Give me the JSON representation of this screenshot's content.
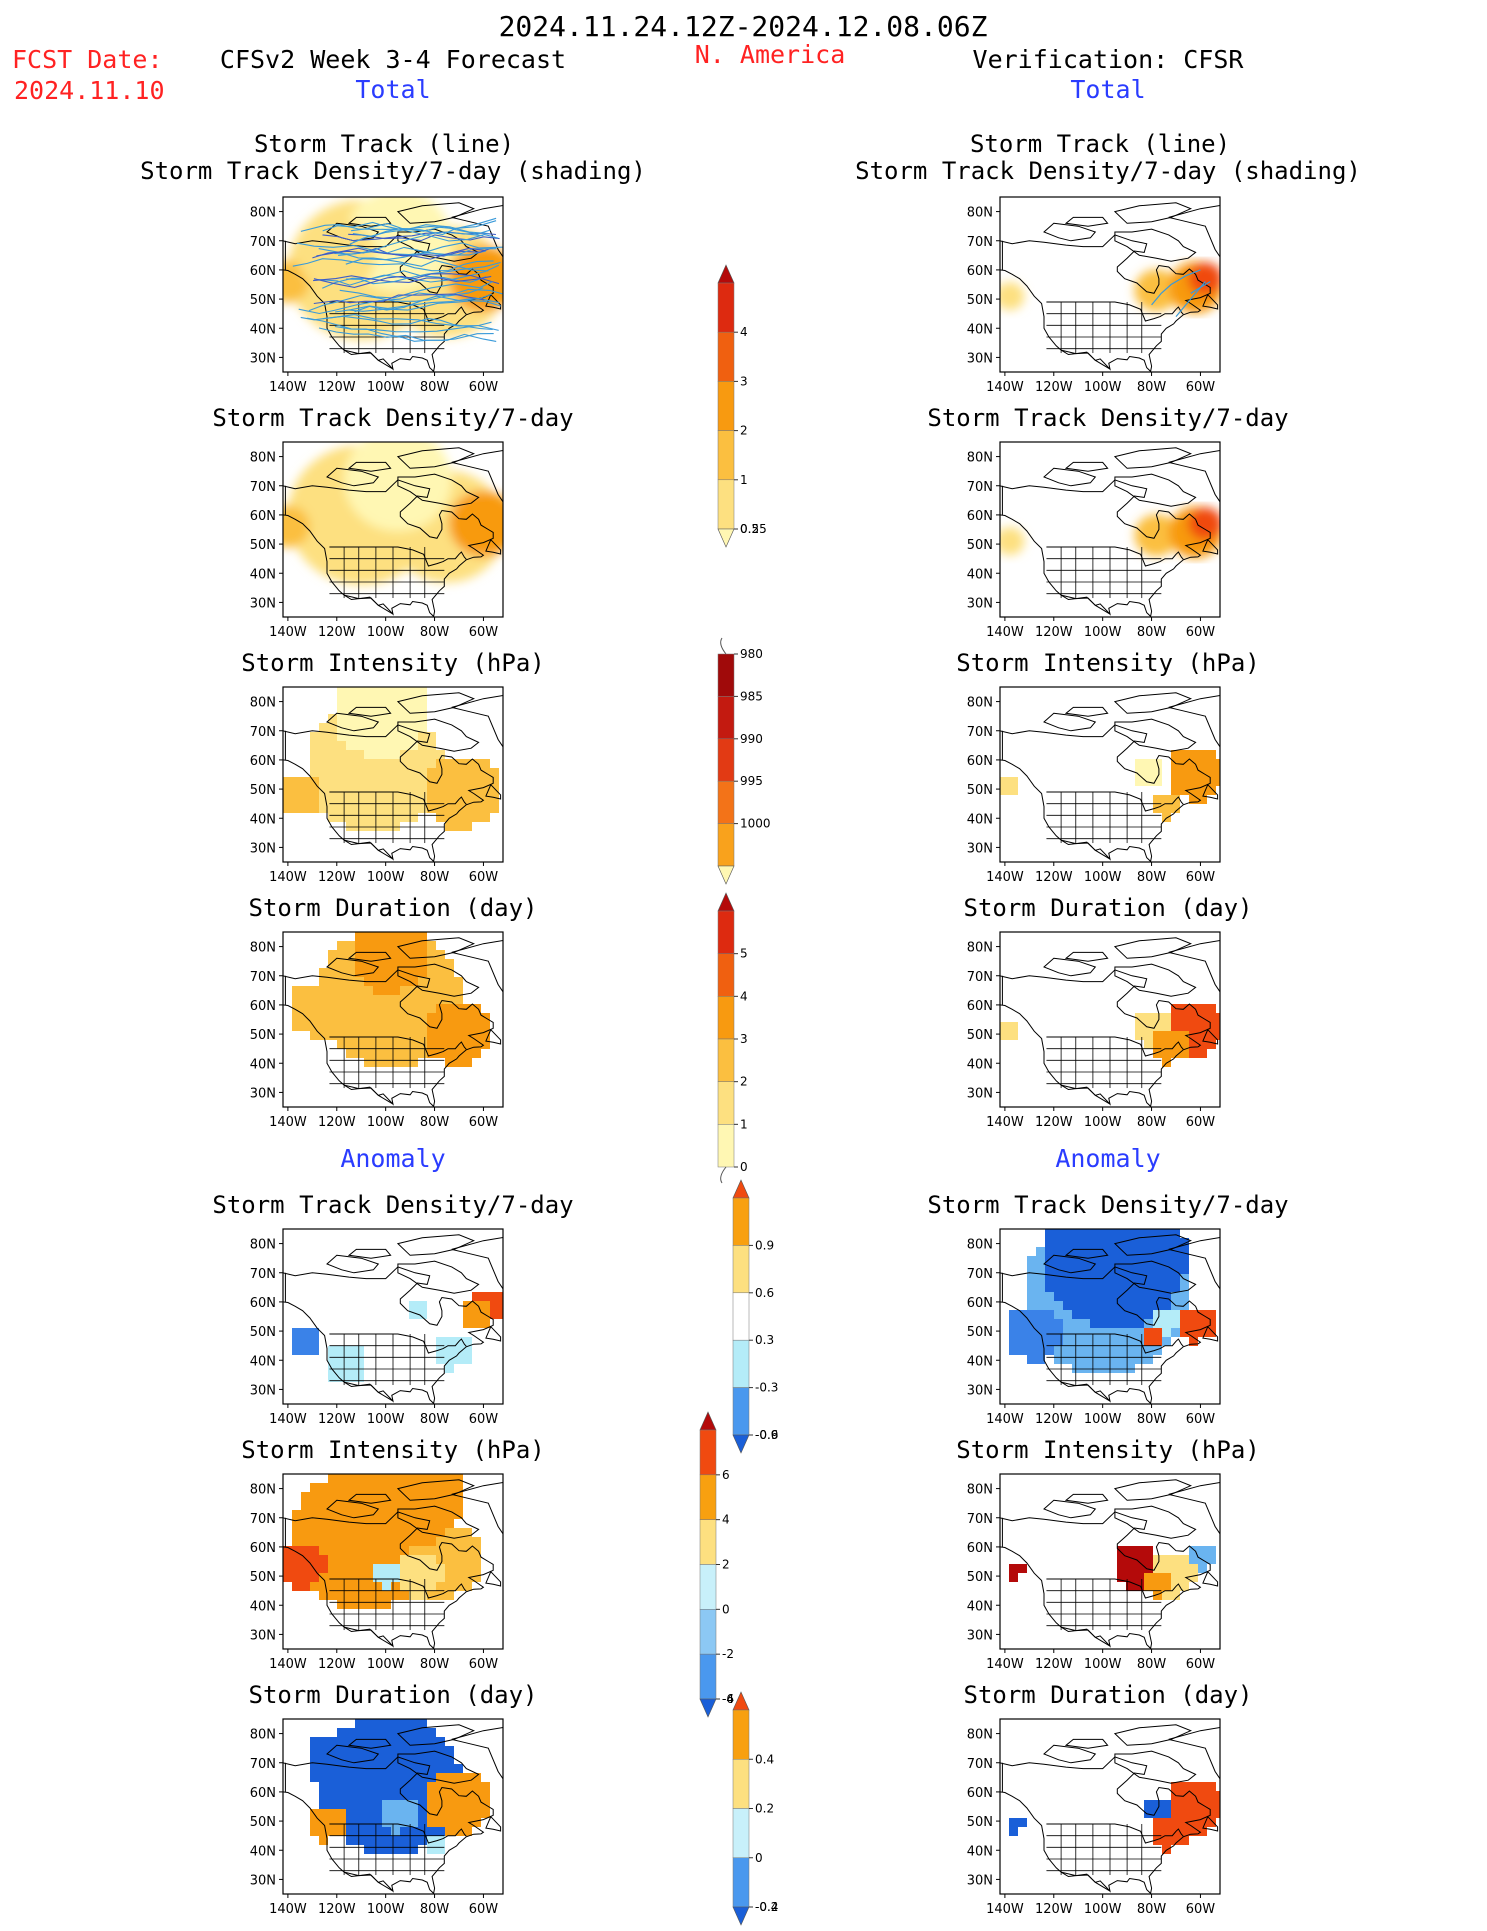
{
  "header": {
    "date_range": "2024.11.24.12Z-2024.12.08.06Z",
    "fcst_date_label": "FCST Date:",
    "fcst_date_value": "2024.11.10",
    "left_title": "CFSv2 Week 3-4 Forecast",
    "region": "N. America",
    "right_title": "Verification: CFSR",
    "total_left": "Total",
    "total_right": "Total",
    "anomaly_left": "Anomaly",
    "anomaly_right": "Anomaly"
  },
  "axes": {
    "lat_labels": [
      "80N",
      "70N",
      "60N",
      "50N",
      "40N",
      "30N"
    ],
    "lon_labels": [
      "140W",
      "120W",
      "100W",
      "80W",
      "60W"
    ]
  },
  "panels": {
    "l1_title_a": "Storm Track (line)",
    "l1_title_b": "Storm Track Density/7-day (shading)",
    "r1_title_a": "Storm Track (line)",
    "r1_title_b": "Storm Track Density/7-day (shading)",
    "l2_title": "Storm Track Density/7-day",
    "r2_title": "Storm Track Density/7-day",
    "l3_title": "Storm Intensity (hPa)",
    "r3_title": "Storm Intensity (hPa)",
    "l4_title": "Storm Duration (day)",
    "r4_title": "Storm Duration (day)",
    "l5_title": "Storm Track Density/7-day",
    "r5_title": "Storm Track Density/7-day",
    "l6_title": "Storm Intensity (hPa)",
    "r6_title": "Storm Intensity (hPa)",
    "l7_title": "Storm Duration (day)",
    "r7_title": "Storm Duration (day)"
  },
  "colorbars": {
    "density_total": {
      "labels": [
        "0.25",
        "0.5",
        "1",
        "2",
        "3",
        "4"
      ],
      "colors": [
        "#fff7b3",
        "#fde080",
        "#fbbf40",
        "#f89a10",
        "#f06010",
        "#dd2a10",
        "#b40a0a"
      ]
    },
    "intensity_total": {
      "labels": [
        "1000",
        "995",
        "990",
        "985",
        "980"
      ],
      "colors": [
        "#fff7b3",
        "#f9a21c",
        "#f37318",
        "#e23a14",
        "#c31a10",
        "#a00a0a"
      ]
    },
    "duration_total": {
      "labels": [
        "0",
        "1",
        "2",
        "3",
        "4",
        "5"
      ],
      "colors": [
        "#fff7b3",
        "#fde080",
        "#fbbf40",
        "#f89a10",
        "#f06010",
        "#dd2a10",
        "#b40a0a"
      ]
    },
    "density_anom": {
      "labels": [
        "-0.9",
        "-0.6",
        "-0.3",
        "0.3",
        "0.6",
        "0.9"
      ],
      "colors": [
        "#1a5fd8",
        "#4a98ee",
        "#b4ecf8",
        "#ffffff",
        "#fde080",
        "#f8a010",
        "#f04a10"
      ]
    },
    "intensity_anom": {
      "labels": [
        "-6",
        "-4",
        "-2",
        "0",
        "2",
        "4",
        "6"
      ],
      "colors": [
        "#1a5fd8",
        "#4a98ee",
        "#8cc8f4",
        "#c8f0fa",
        "#fde080",
        "#f8a010",
        "#f04a10",
        "#b40a0a"
      ]
    },
    "duration_anom": {
      "labels": [
        "-0.4",
        "-0.2",
        "0",
        "0.2",
        "0.4"
      ],
      "colors": [
        "#1a5fd8",
        "#4a98ee",
        "#c8f0fa",
        "#fde080",
        "#f8a010",
        "#f04a10"
      ]
    }
  },
  "colors": {
    "track_line": "#3a9ad9",
    "map_outline": "#000000"
  }
}
